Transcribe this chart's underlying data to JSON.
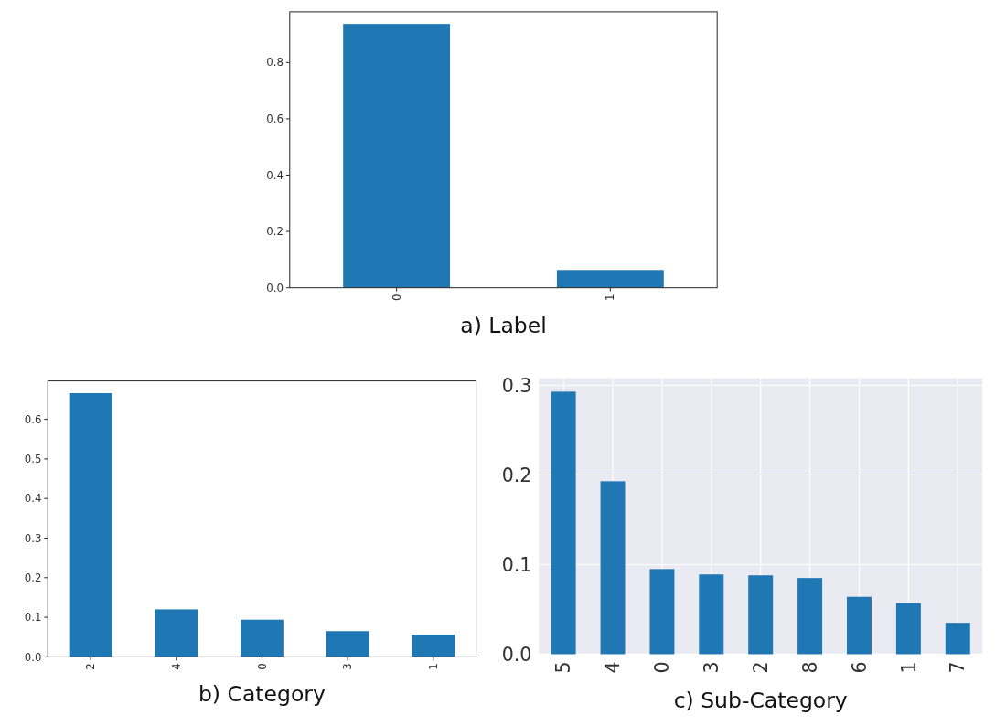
{
  "chart_data": [
    {
      "type": "bar",
      "xlabel": "a) Label",
      "categories": [
        "0",
        "1"
      ],
      "values": [
        0.937,
        0.063
      ],
      "color": "#1f77b4",
      "ylim": [
        0,
        0.98
      ],
      "yticks": [
        {
          "value": 0,
          "label": "0.0"
        },
        {
          "value": 0.2,
          "label": "0.2"
        },
        {
          "value": 0.4,
          "label": "0.4"
        },
        {
          "value": 0.6,
          "label": "0.6"
        },
        {
          "value": 0.8,
          "label": "0.8"
        }
      ],
      "grid": false
    },
    {
      "type": "bar",
      "xlabel": "b) Category",
      "categories": [
        "2",
        "4",
        "0",
        "3",
        "1"
      ],
      "values": [
        0.666,
        0.12,
        0.094,
        0.065,
        0.056
      ],
      "color": "#1f77b4",
      "ylim": [
        0,
        0.697
      ],
      "yticks": [
        {
          "value": 0,
          "label": "0.0"
        },
        {
          "value": 0.1,
          "label": "0.1"
        },
        {
          "value": 0.2,
          "label": "0.2"
        },
        {
          "value": 0.3,
          "label": "0.3"
        },
        {
          "value": 0.4,
          "label": "0.4"
        },
        {
          "value": 0.5,
          "label": "0.5"
        },
        {
          "value": 0.6,
          "label": "0.6"
        }
      ],
      "grid": false
    },
    {
      "type": "bar",
      "xlabel": "c) Sub-Category",
      "categories": [
        "5",
        "4",
        "0",
        "3",
        "2",
        "8",
        "6",
        "1",
        "7"
      ],
      "values": [
        0.293,
        0.193,
        0.095,
        0.089,
        0.088,
        0.085,
        0.064,
        0.057,
        0.035
      ],
      "color": "#1f77b4",
      "ylim": [
        0,
        0.308
      ],
      "yticks": [
        {
          "value": 0,
          "label": "0.0"
        },
        {
          "value": 0.1,
          "label": "0.1"
        },
        {
          "value": 0.2,
          "label": "0.2"
        },
        {
          "value": 0.3,
          "label": "0.3"
        }
      ],
      "grid": true
    }
  ]
}
